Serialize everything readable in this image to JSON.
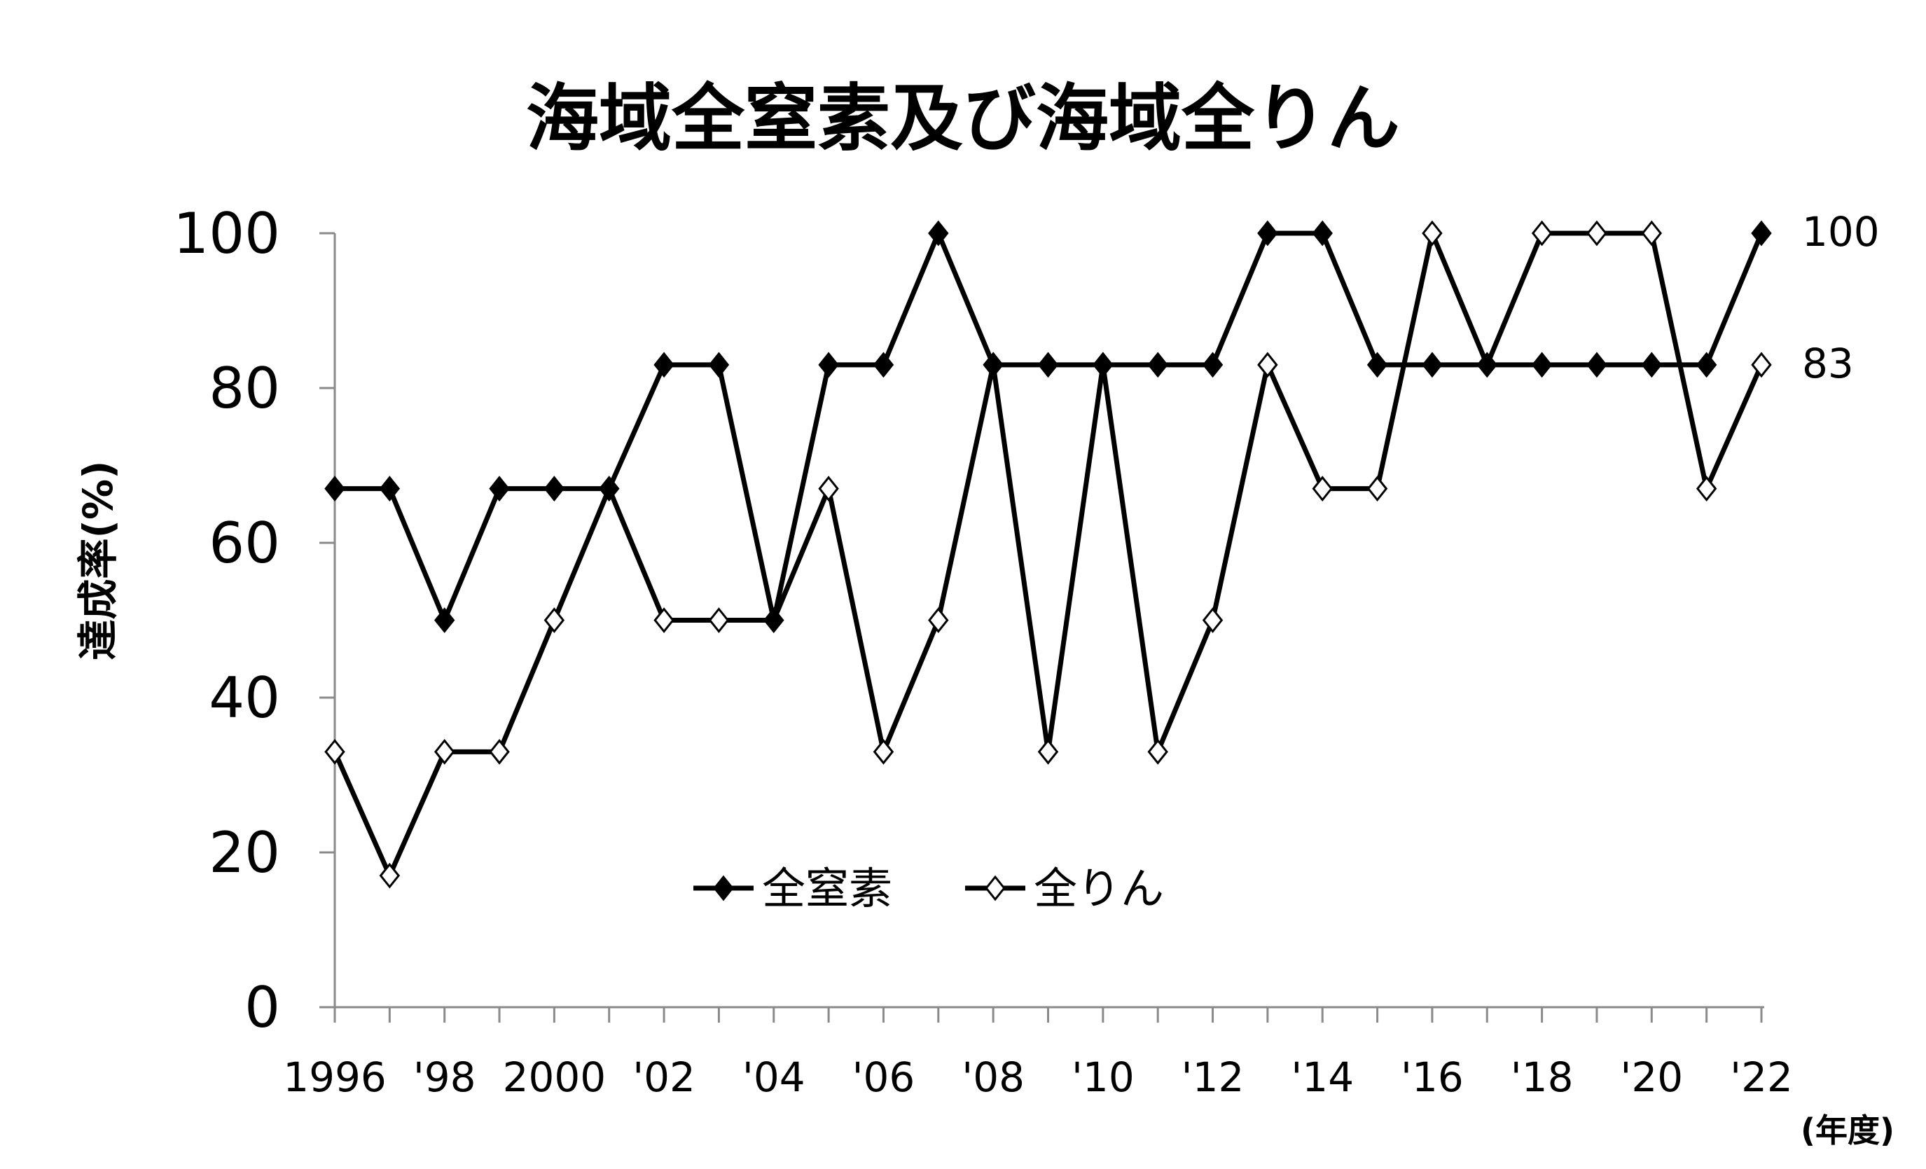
{
  "chart_data": {
    "type": "line",
    "title": "海域全窒素及び海域全りん",
    "ylabel": "達成率(%)",
    "xunit": "(年度)",
    "ylim": [
      0,
      100
    ],
    "yticks": [
      "0",
      "20",
      "40",
      "60",
      "80",
      "100"
    ],
    "grid": false,
    "legend_position": "bottom-center",
    "categories": [
      "1996",
      "1997",
      "1998",
      "1999",
      "2000",
      "2001",
      "2002",
      "2003",
      "2004",
      "2005",
      "2006",
      "2007",
      "2008",
      "2009",
      "2010",
      "2011",
      "2012",
      "2013",
      "2014",
      "2015",
      "2016",
      "2017",
      "2018",
      "2019",
      "2020",
      "2021",
      "2022"
    ],
    "xtick_labels": [
      "1996",
      "",
      "'98",
      "",
      "2000",
      "",
      "'02",
      "",
      "'04",
      "",
      "'06",
      "",
      "'08",
      "",
      "'10",
      "",
      "'12",
      "",
      "'14",
      "",
      "'16",
      "",
      "'18",
      "",
      "'20",
      "",
      "'22"
    ],
    "series": [
      {
        "name": "全窒素",
        "marker": "filled-diamond",
        "color": "#000000",
        "values": [
          67,
          67,
          50,
          67,
          67,
          67,
          83,
          83,
          50,
          83,
          83,
          100,
          83,
          83,
          83,
          83,
          83,
          100,
          100,
          83,
          83,
          83,
          83,
          83,
          83,
          83,
          100
        ]
      },
      {
        "name": "全りん",
        "marker": "open-diamond",
        "color": "#000000",
        "values": [
          33,
          17,
          33,
          33,
          50,
          67,
          50,
          50,
          50,
          67,
          33,
          50,
          83,
          33,
          83,
          33,
          50,
          83,
          67,
          67,
          100,
          83,
          100,
          100,
          100,
          67,
          83
        ]
      }
    ],
    "end_labels": [
      "100",
      "83"
    ]
  }
}
